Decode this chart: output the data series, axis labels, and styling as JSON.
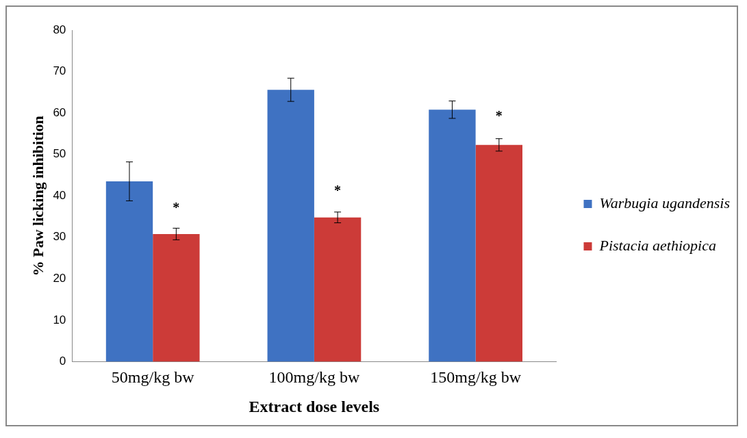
{
  "chart_data": {
    "type": "bar",
    "xlabel": "Extract dose levels",
    "ylabel": "% Paw licking inhibition",
    "categories": [
      "50mg/kg bw",
      "100mg/kg bw",
      "150mg/kg bw"
    ],
    "series": [
      {
        "name": "Warbugia ugandensis",
        "color": "#3f72c2",
        "values": [
          43.5,
          65.6,
          60.8
        ],
        "errors": [
          4.7,
          2.8,
          2.1
        ]
      },
      {
        "name": "Pistacia aethiopica",
        "color": "#cc3b38",
        "values": [
          30.8,
          34.8,
          52.3
        ],
        "errors": [
          1.4,
          1.3,
          1.5
        ]
      }
    ],
    "ylim": [
      0,
      80
    ],
    "yticks": [
      0,
      10,
      20,
      30,
      40,
      50,
      60,
      70,
      80
    ],
    "grid": false,
    "legend": "right",
    "annotations": [
      {
        "text": "*",
        "x": "50mg/kg bw",
        "y": 37
      },
      {
        "text": "*",
        "x": "100mg/kg bw",
        "y": 41
      },
      {
        "text": "*",
        "x": "150mg/kg bw",
        "y": 59
      }
    ]
  }
}
